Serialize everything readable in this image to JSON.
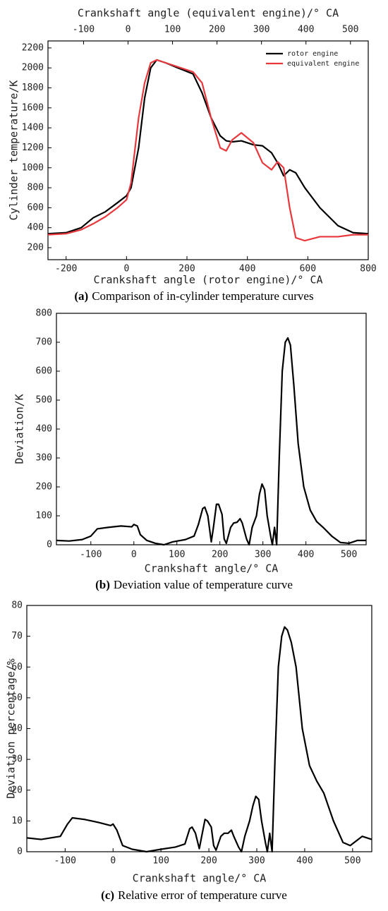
{
  "chart_data": [
    {
      "type": "line",
      "x2label": "Crankshaft angle (equivalent engine)/° CA",
      "x2lim": [
        -180,
        540
      ],
      "x2ticks": [
        -100,
        0,
        100,
        200,
        300,
        400,
        500
      ],
      "xlabel": "Crankshaft angle (rotor engine)/° CA",
      "ylabel": "Cylinder temperature/K",
      "caption_label": "(a)",
      "caption": "Comparison of in-cylinder temperature curves",
      "xlim": [
        -260,
        800
      ],
      "xticks": [
        -200,
        0,
        200,
        400,
        600,
        800
      ],
      "ylim": [
        80,
        2270
      ],
      "yticks": [
        200,
        400,
        600,
        800,
        1000,
        1200,
        1400,
        1600,
        1800,
        2000,
        2200
      ],
      "legend": "upper right",
      "x": [
        -260,
        -200,
        -150,
        -110,
        -70,
        -30,
        0,
        15,
        40,
        60,
        80,
        100,
        130,
        170,
        220,
        250,
        280,
        310,
        330,
        350,
        380,
        420,
        450,
        480,
        500,
        520,
        540,
        560,
        590,
        640,
        700,
        750,
        800
      ],
      "series": [
        {
          "name": "rotor engine",
          "color": "#000000",
          "values": [
            340,
            350,
            400,
            500,
            560,
            650,
            720,
            800,
            1200,
            1700,
            2000,
            2080,
            2050,
            2000,
            1940,
            1750,
            1500,
            1320,
            1270,
            1260,
            1270,
            1230,
            1220,
            1150,
            1050,
            920,
            980,
            950,
            800,
            600,
            420,
            350,
            340
          ]
        },
        {
          "name": "equivalent engine",
          "color": "#e8383d",
          "values": [
            330,
            340,
            380,
            440,
            510,
            600,
            680,
            850,
            1500,
            1850,
            2050,
            2080,
            2050,
            2010,
            1960,
            1850,
            1500,
            1200,
            1170,
            1280,
            1350,
            1250,
            1050,
            980,
            1060,
            1000,
            600,
            300,
            270,
            310,
            310,
            330,
            330
          ]
        }
      ]
    },
    {
      "type": "line",
      "xlabel": "Crankshaft angle/° CA",
      "ylabel": "Deviation/K",
      "caption_label": "(b)",
      "caption": "Deviation value of temperature curve",
      "xlim": [
        -180,
        540
      ],
      "xticks": [
        -100,
        0,
        100,
        200,
        300,
        400,
        500
      ],
      "ylim": [
        0,
        800
      ],
      "yticks": [
        0,
        100,
        200,
        300,
        400,
        500,
        600,
        700,
        800
      ],
      "x": [
        -180,
        -150,
        -120,
        -100,
        -85,
        -60,
        -30,
        -5,
        0,
        8,
        15,
        30,
        50,
        70,
        90,
        120,
        140,
        150,
        160,
        165,
        172,
        180,
        185,
        192,
        197,
        205,
        210,
        215,
        225,
        232,
        240,
        247,
        252,
        262,
        268,
        275,
        285,
        292,
        298,
        304,
        310,
        318,
        322,
        327,
        332,
        338,
        345,
        352,
        358,
        364,
        372,
        382,
        395,
        410,
        425,
        440,
        460,
        480,
        500,
        520,
        540
      ],
      "series": [
        {
          "color": "#000000",
          "values": [
            15,
            13,
            18,
            30,
            55,
            60,
            65,
            62,
            70,
            65,
            35,
            15,
            5,
            0,
            10,
            18,
            30,
            70,
            125,
            130,
            100,
            10,
            60,
            140,
            140,
            105,
            20,
            5,
            60,
            75,
            78,
            90,
            75,
            20,
            0,
            60,
            100,
            175,
            210,
            190,
            100,
            30,
            0,
            60,
            0,
            300,
            600,
            700,
            715,
            690,
            550,
            350,
            200,
            120,
            80,
            60,
            30,
            8,
            5,
            15,
            15
          ]
        }
      ]
    },
    {
      "type": "line",
      "xlabel": "Crankshaft angle/° CA",
      "ylabel": "Deviation percentage/%",
      "caption_label": "(c)",
      "caption": "Relative error of temperature curve",
      "xlim": [
        -180,
        540
      ],
      "xticks": [
        -100,
        0,
        100,
        200,
        300,
        400,
        500
      ],
      "ylim": [
        0,
        80
      ],
      "yticks": [
        0,
        10,
        20,
        30,
        40,
        50,
        60,
        70,
        80
      ],
      "x": [
        -180,
        -150,
        -110,
        -95,
        -85,
        -60,
        -30,
        -5,
        0,
        8,
        20,
        40,
        70,
        100,
        130,
        150,
        160,
        165,
        172,
        180,
        185,
        192,
        197,
        205,
        210,
        215,
        225,
        232,
        240,
        247,
        252,
        262,
        268,
        275,
        285,
        292,
        298,
        304,
        310,
        318,
        322,
        327,
        332,
        338,
        345,
        352,
        358,
        364,
        372,
        382,
        395,
        410,
        425,
        440,
        460,
        480,
        495,
        520,
        540
      ],
      "series": [
        {
          "color": "#000000",
          "values": [
            4.5,
            4,
            5,
            9,
            11,
            10.5,
            9.5,
            8.5,
            9,
            7,
            2,
            0.8,
            0,
            0.8,
            1.5,
            2.5,
            7.5,
            8,
            6,
            1,
            5,
            10.5,
            10,
            8,
            2,
            0.5,
            5,
            6,
            6,
            7,
            5,
            1.5,
            0,
            5,
            10,
            15,
            18,
            17,
            10,
            3,
            0,
            6,
            0,
            30,
            60,
            70,
            73,
            72,
            68,
            60,
            40,
            28,
            23,
            19,
            10,
            3,
            2,
            5,
            4
          ]
        }
      ]
    }
  ]
}
